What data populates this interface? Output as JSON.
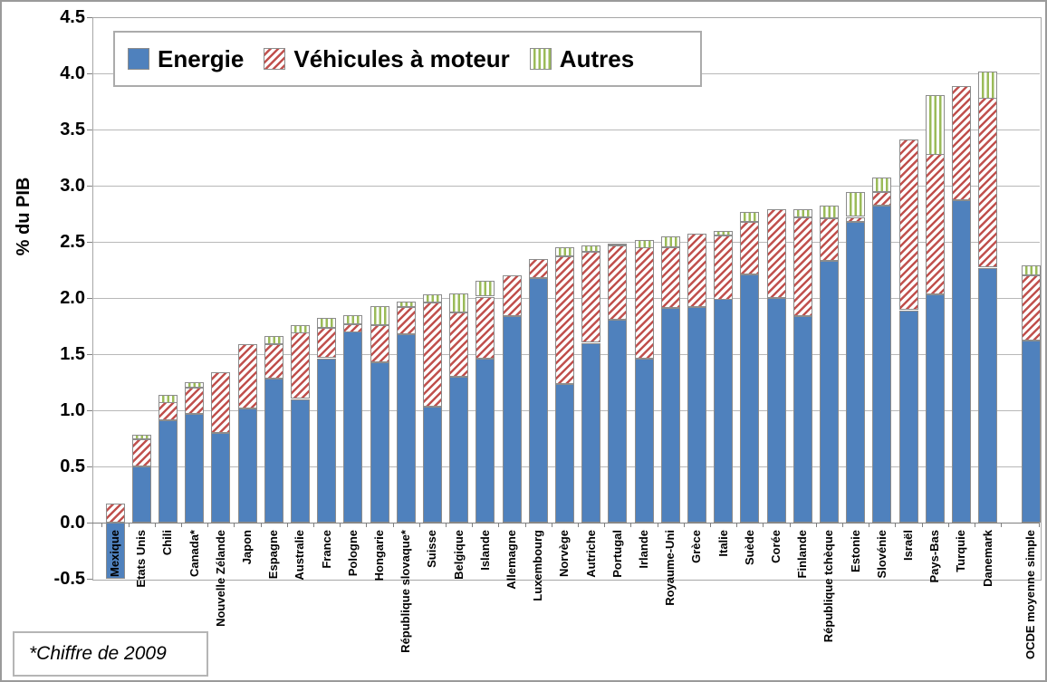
{
  "chart_data": {
    "type": "bar",
    "stacked": true,
    "ylabel": "% du PIB",
    "ylim": [
      -0.5,
      4.5
    ],
    "ytick_step": 0.5,
    "grid": true,
    "legend_position": "top-left-inside",
    "legend": [
      "Energie",
      "Véhicules à moteur",
      "Autres"
    ],
    "footnote": "*Chiffre de 2009",
    "colors": {
      "energie": "#4f81bd",
      "vehicules": "#c0504d",
      "autres": "#9bbb59"
    },
    "categories": [
      "Mexique",
      "Etats Unis",
      "Chili",
      "Canada*",
      "Nouvelle Zélande",
      "Japon",
      "Espagne",
      "Australie",
      "France",
      "Pologne",
      "Hongarie",
      "République slovaque*",
      "Suisse",
      "Belgique",
      "Islande",
      "Allemagne",
      "Luxembourg",
      "Norvège",
      "Autriche",
      "Portugal",
      "Irlande",
      "Royaume-Uni",
      "Grèce",
      "Italie",
      "Suède",
      "Corée",
      "Finlande",
      "République tchèque",
      "Estonie",
      "Slovénie",
      "Israël",
      "Pays-Bas",
      "Turquie",
      "Danemark",
      "OCDE moyenne simple"
    ],
    "separated_last_category": true,
    "series": [
      {
        "name": "Energie",
        "values": [
          -0.5,
          0.5,
          0.91,
          0.97,
          0.8,
          1.02,
          1.28,
          1.1,
          1.46,
          1.7,
          1.43,
          1.68,
          1.03,
          1.3,
          1.46,
          1.84,
          2.18,
          1.23,
          1.6,
          1.81,
          1.46,
          1.91,
          1.92,
          1.99,
          2.21,
          2.0,
          1.84,
          2.33,
          2.68,
          2.82,
          1.89,
          2.03,
          2.87,
          2.27,
          1.62
        ]
      },
      {
        "name": "Véhicules à moteur",
        "values": [
          0.17,
          0.24,
          0.16,
          0.23,
          0.54,
          0.57,
          0.31,
          0.59,
          0.27,
          0.07,
          0.33,
          0.24,
          0.93,
          0.57,
          0.55,
          0.36,
          0.17,
          1.14,
          0.81,
          0.66,
          0.99,
          0.54,
          0.65,
          0.57,
          0.47,
          0.79,
          0.88,
          0.38,
          0.04,
          0.12,
          1.52,
          1.25,
          1.02,
          1.51,
          0.58
        ]
      },
      {
        "name": "Autres",
        "values": [
          0,
          0.04,
          0.07,
          0.05,
          0,
          0,
          0.07,
          0.07,
          0.09,
          0.08,
          0.17,
          0.05,
          0.07,
          0.17,
          0.14,
          0,
          0,
          0.08,
          0.06,
          0.01,
          0.07,
          0.1,
          0,
          0.04,
          0.09,
          0,
          0.07,
          0.11,
          0.22,
          0.13,
          0,
          0.53,
          0,
          0.24,
          0.09
        ]
      }
    ]
  }
}
